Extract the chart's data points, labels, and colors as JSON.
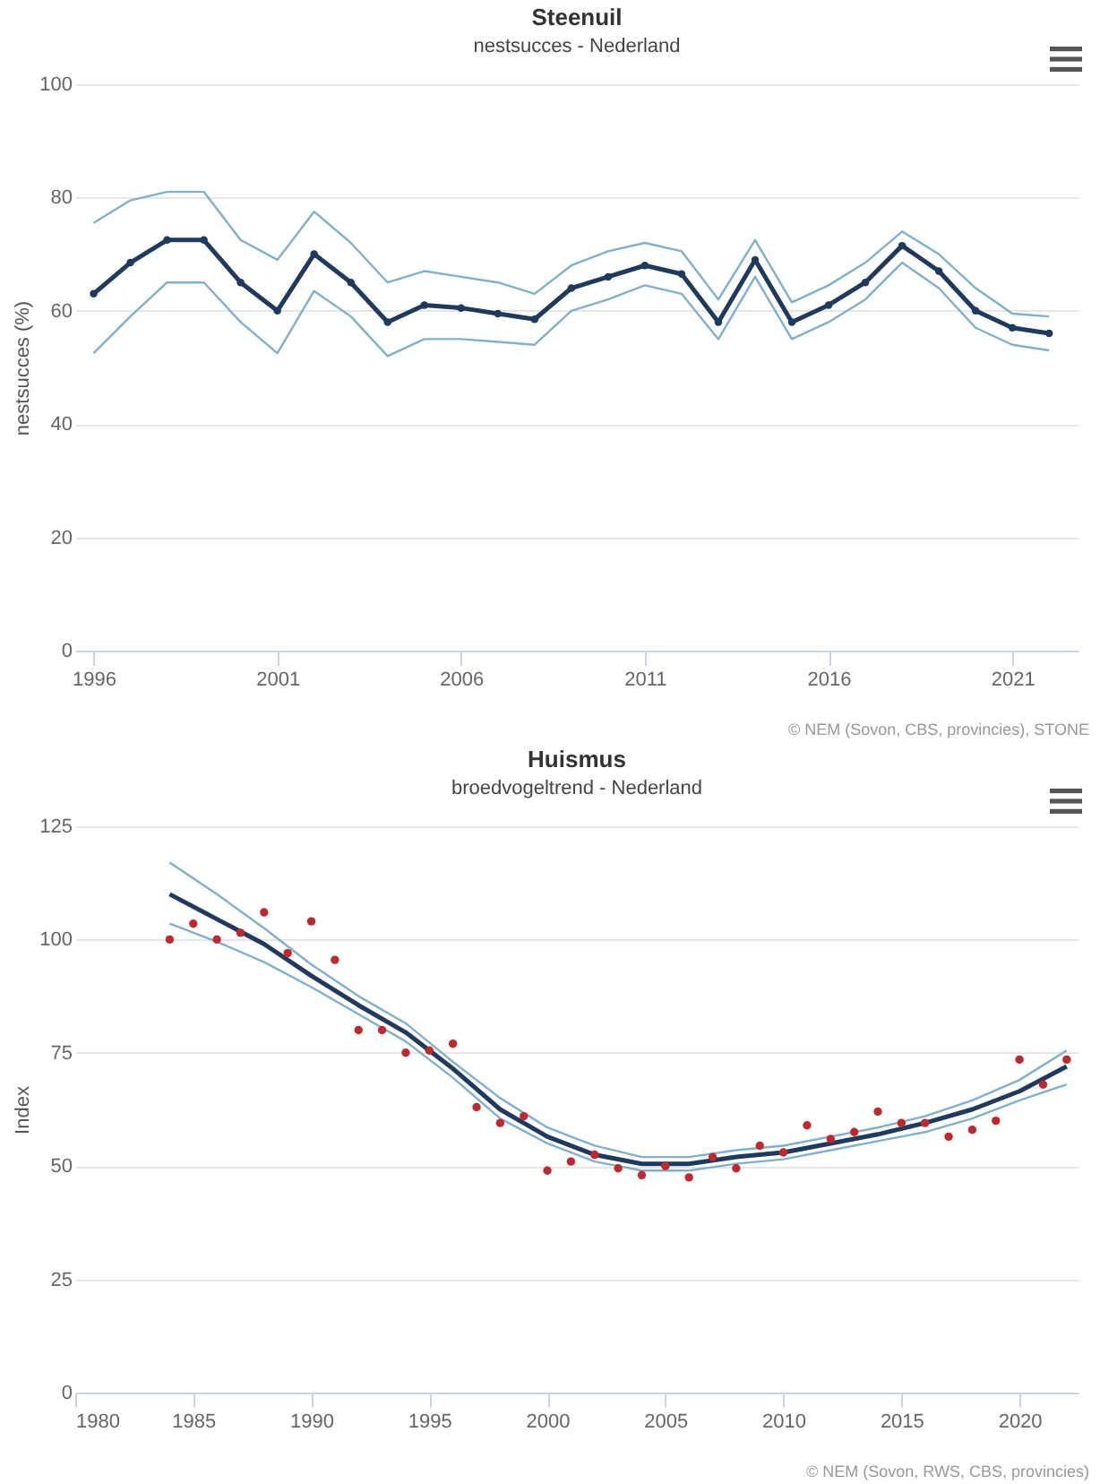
{
  "chart_data": [
    {
      "type": "line",
      "title": "Steenuil",
      "subtitle": "nestsucces - Nederland",
      "ylabel": "nestsucces (%)",
      "annotations": [
        "© NEM (Sovon, CBS, provincies), STONE"
      ],
      "x": [
        1996,
        1997,
        1998,
        1999,
        2000,
        2001,
        2002,
        2003,
        2004,
        2005,
        2006,
        2007,
        2008,
        2009,
        2010,
        2011,
        2012,
        2013,
        2014,
        2015,
        2016,
        2017,
        2018,
        2019,
        2020,
        2021,
        2022
      ],
      "series": [
        {
          "color": "#7fb0cc",
          "values": [
            75.5,
            79.5,
            81,
            81,
            72.5,
            69,
            77.5,
            72,
            65,
            67,
            66,
            65,
            63,
            68,
            70.5,
            72,
            70.5,
            62,
            72.5,
            61.5,
            64.5,
            68.5,
            74,
            70,
            64,
            59.5,
            59
          ]
        },
        {
          "color": "#7fb0cc",
          "values": [
            52.5,
            59,
            65,
            65,
            58,
            52.5,
            63.5,
            59,
            52,
            55,
            55,
            54.5,
            54,
            60,
            62,
            64.5,
            63,
            55,
            66,
            55,
            58,
            62,
            68.5,
            64,
            57,
            54,
            53
          ]
        },
        {
          "color": "#1f3a5f",
          "marker": "circle",
          "values": [
            63,
            68.5,
            72.5,
            72.5,
            65,
            60,
            70,
            65,
            58,
            61,
            60.5,
            59.5,
            58.5,
            64,
            66,
            68,
            66.5,
            58,
            69,
            58,
            61,
            65,
            71.5,
            67,
            60,
            57,
            56
          ]
        }
      ],
      "xlim": [
        1995.5,
        2022.8
      ],
      "xticks": [
        1996,
        2001,
        2006,
        2011,
        2016,
        2021
      ],
      "ylim": [
        0,
        100
      ],
      "yticks": [
        0,
        20,
        40,
        60,
        80,
        100
      ],
      "grid": "y"
    },
    {
      "type": "line",
      "title": "Huismus",
      "subtitle": "broedvogeltrend - Nederland",
      "ylabel": "Index",
      "annotations": [
        "© NEM (Sovon, RWS, CBS, provincies)"
      ],
      "series": [
        {
          "color": "#7fb0cc",
          "x": [
            1984,
            1986,
            1988,
            1990,
            1992,
            1994,
            1996,
            1998,
            2000,
            2002,
            2004,
            2006,
            2008,
            2010,
            2012,
            2014,
            2016,
            2018,
            2020,
            2022
          ],
          "values": [
            117,
            110,
            102.5,
            94.5,
            87.5,
            81.5,
            73,
            65,
            58.5,
            54.5,
            52,
            52,
            53.5,
            54.5,
            56.5,
            58.5,
            61,
            64.5,
            69,
            75.5
          ]
        },
        {
          "color": "#7fb0cc",
          "x": [
            1984,
            1986,
            1988,
            1990,
            1992,
            1994,
            1996,
            1998,
            2000,
            2002,
            2004,
            2006,
            2008,
            2010,
            2012,
            2014,
            2016,
            2018,
            2020,
            2022
          ],
          "values": [
            103.5,
            99.5,
            95,
            89.5,
            83.5,
            77.5,
            69.5,
            60.5,
            55,
            51,
            49,
            49,
            50.5,
            51.5,
            53.5,
            55.5,
            57.5,
            60.5,
            64.5,
            68
          ]
        },
        {
          "color": "#1f3a5f",
          "x": [
            1984,
            1986,
            1988,
            1990,
            1992,
            1994,
            1996,
            1998,
            2000,
            2002,
            2004,
            2006,
            2008,
            2010,
            2012,
            2014,
            2016,
            2018,
            2020,
            2022
          ],
          "values": [
            110,
            104.5,
            99,
            92,
            85.5,
            79.5,
            71.5,
            62.5,
            56.5,
            52.5,
            50.5,
            50.5,
            52,
            53,
            55,
            57,
            59.5,
            62.5,
            66.5,
            72
          ]
        },
        {
          "type": "scatter",
          "color": "#c0282d",
          "x": [
            1984,
            1985,
            1986,
            1987,
            1988,
            1989,
            1990,
            1991,
            1992,
            1993,
            1994,
            1995,
            1996,
            1997,
            1998,
            1999,
            2000,
            2001,
            2002,
            2003,
            2004,
            2005,
            2006,
            2007,
            2008,
            2009,
            2010,
            2011,
            2012,
            2013,
            2014,
            2015,
            2016,
            2017,
            2018,
            2019,
            2020,
            2021,
            2022
          ],
          "values": [
            100,
            103.5,
            100,
            101.5,
            106,
            97,
            104,
            95.5,
            80,
            80,
            75,
            75.5,
            77,
            63,
            59.5,
            61,
            49,
            51,
            52.5,
            49.5,
            48,
            50,
            47.5,
            52,
            49.5,
            54.5,
            53,
            59,
            56,
            57.5,
            62,
            59.5,
            59.5,
            56.5,
            58,
            60,
            73.5,
            68,
            73.5
          ]
        }
      ],
      "xlim": [
        1980,
        2022.5
      ],
      "xticks": [
        1980,
        1985,
        1990,
        1995,
        2000,
        2005,
        2010,
        2015,
        2020
      ],
      "ylim": [
        0,
        125
      ],
      "yticks": [
        0,
        25,
        50,
        75,
        100,
        125
      ],
      "grid": "y"
    }
  ]
}
